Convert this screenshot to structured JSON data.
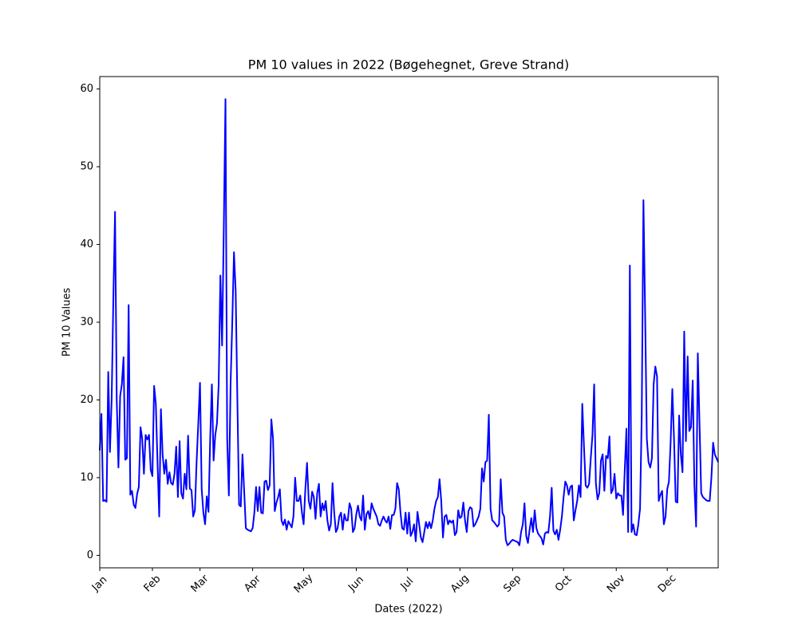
{
  "chart_data": {
    "type": "line",
    "title": "PM 10 values in 2022 (Bøgehegnet, Greve Strand)",
    "x_label": "Dates (2022)",
    "y_label": "PM 10 Values",
    "color": "#0000ff",
    "xlim": [
      0,
      364
    ],
    "ylim": [
      -1.6,
      61.6
    ],
    "yticks": [
      0,
      10,
      20,
      30,
      40,
      50,
      60
    ],
    "xticks": [
      {
        "value": 0,
        "label": "Jan"
      },
      {
        "value": 31,
        "label": "Feb"
      },
      {
        "value": 59,
        "label": "Mar"
      },
      {
        "value": 90,
        "label": "Apr"
      },
      {
        "value": 120,
        "label": "May"
      },
      {
        "value": 151,
        "label": "Jun"
      },
      {
        "value": 181,
        "label": "Jul"
      },
      {
        "value": 212,
        "label": "Aug"
      },
      {
        "value": 243,
        "label": "Sep"
      },
      {
        "value": 273,
        "label": "Oct"
      },
      {
        "value": 304,
        "label": "Nov"
      },
      {
        "value": 334,
        "label": "Dec"
      }
    ],
    "grid": false,
    "x": [
      0,
      1,
      2,
      3,
      4,
      5,
      6,
      7,
      8,
      9,
      10,
      11,
      12,
      13,
      14,
      15,
      16,
      17,
      18,
      19,
      20,
      21,
      22,
      23,
      24,
      25,
      26,
      27,
      28,
      29,
      30,
      31,
      32,
      33,
      34,
      35,
      36,
      37,
      38,
      39,
      40,
      41,
      42,
      43,
      44,
      45,
      46,
      47,
      48,
      49,
      50,
      51,
      52,
      53,
      54,
      55,
      56,
      57,
      58,
      59,
      60,
      61,
      62,
      63,
      64,
      65,
      66,
      67,
      68,
      69,
      70,
      71,
      72,
      73,
      74,
      75,
      76,
      77,
      78,
      79,
      80,
      81,
      82,
      83,
      84,
      85,
      86,
      87,
      88,
      89,
      90,
      91,
      92,
      93,
      94,
      95,
      96,
      97,
      98,
      99,
      100,
      101,
      102,
      103,
      104,
      105,
      106,
      107,
      108,
      109,
      110,
      111,
      112,
      113,
      114,
      115,
      116,
      117,
      118,
      119,
      120,
      121,
      122,
      123,
      124,
      125,
      126,
      127,
      128,
      129,
      130,
      131,
      132,
      133,
      134,
      135,
      136,
      137,
      138,
      139,
      140,
      141,
      142,
      143,
      144,
      145,
      146,
      147,
      148,
      149,
      150,
      151,
      152,
      153,
      154,
      155,
      156,
      157,
      158,
      159,
      160,
      161,
      162,
      163,
      164,
      165,
      166,
      167,
      168,
      169,
      170,
      171,
      172,
      173,
      174,
      175,
      176,
      177,
      178,
      179,
      180,
      181,
      182,
      183,
      184,
      185,
      186,
      187,
      188,
      189,
      190,
      191,
      192,
      193,
      194,
      195,
      196,
      197,
      198,
      199,
      200,
      201,
      202,
      203,
      204,
      205,
      206,
      207,
      208,
      209,
      210,
      211,
      212,
      213,
      214,
      215,
      216,
      217,
      218,
      219,
      220,
      221,
      222,
      223,
      224,
      225,
      226,
      227,
      228,
      229,
      230,
      231,
      232,
      233,
      234,
      235,
      236,
      237,
      238,
      239,
      240,
      241,
      242,
      243,
      244,
      245,
      246,
      247,
      248,
      249,
      250,
      251,
      252,
      253,
      254,
      255,
      256,
      257,
      258,
      259,
      260,
      261,
      262,
      263,
      264,
      265,
      266,
      267,
      268,
      269,
      270,
      271,
      272,
      273,
      274,
      275,
      276,
      277,
      278,
      279,
      280,
      281,
      282,
      283,
      284,
      285,
      286,
      287,
      288,
      289,
      290,
      291,
      292,
      293,
      294,
      295,
      296,
      297,
      298,
      299,
      300,
      301,
      302,
      303,
      304,
      305,
      306,
      307,
      308,
      309,
      310,
      311,
      312,
      313,
      314,
      315,
      316,
      317,
      318,
      319,
      320,
      321,
      322,
      323,
      324,
      325,
      326,
      327,
      328,
      329,
      330,
      331,
      332,
      333,
      334,
      335,
      336,
      337,
      338,
      339,
      340,
      341,
      342,
      343,
      344,
      345,
      346,
      347,
      348,
      349,
      350,
      351,
      352,
      353,
      354,
      355,
      356,
      357,
      358,
      359,
      360,
      361,
      362,
      363,
      364
    ],
    "values": [
      13.5,
      18.2,
      7,
      7.1,
      6.9,
      23.6,
      13.3,
      20,
      33,
      44.2,
      20,
      11.3,
      20.5,
      22,
      25.5,
      12.3,
      12.5,
      32.2,
      7.8,
      8.3,
      6.5,
      6.1,
      7.9,
      8.8,
      16.5,
      15,
      10.5,
      15.5,
      14.9,
      15.5,
      11,
      10.2,
      21.8,
      19.5,
      12,
      5,
      18.8,
      13,
      10.5,
      12.3,
      9.2,
      10.7,
      9.3,
      9.1,
      10.5,
      14,
      7.5,
      14.7,
      8,
      7.3,
      10.5,
      8.5,
      15.4,
      8.6,
      8.4,
      5,
      5.8,
      12,
      17,
      22.2,
      8.5,
      5.5,
      4,
      7.6,
      5.6,
      15,
      22,
      12.2,
      15.5,
      17,
      22,
      36,
      27,
      42,
      58.7,
      15,
      7.7,
      22,
      30,
      39,
      34,
      20,
      6.5,
      6.3,
      13,
      8.3,
      3.5,
      3.3,
      3.2,
      3.1,
      3.5,
      5.5,
      8.8,
      5.7,
      8.8,
      5.5,
      5.4,
      9.5,
      9.6,
      8.4,
      9,
      17.5,
      15,
      5.7,
      6.8,
      7.5,
      8.5,
      4.5,
      3.9,
      4.6,
      3.3,
      4.4,
      4,
      3.6,
      5,
      10,
      7,
      7,
      7.7,
      5.5,
      4,
      8.5,
      11.9,
      7,
      6,
      8.2,
      7.5,
      4.7,
      8,
      9.2,
      5,
      6.7,
      5.8,
      7,
      4.5,
      3.2,
      4,
      9.3,
      5.5,
      3,
      3.5,
      5,
      5.5,
      3.3,
      5.3,
      4.5,
      4.5,
      6.7,
      6,
      3,
      3.5,
      5.3,
      6.4,
      5,
      4.5,
      7.7,
      3.3,
      5.3,
      5.7,
      4.7,
      6.7,
      6,
      5.5,
      5,
      4,
      3.8,
      4.5,
      5,
      4.5,
      4.2,
      5,
      3.4,
      5.2,
      5.2,
      6,
      9.3,
      8.5,
      5.5,
      3.5,
      3.3,
      5.5,
      2.8,
      5.5,
      2.5,
      3,
      4,
      1.8,
      5.6,
      4,
      2.3,
      1.7,
      3,
      4.3,
      3.5,
      4.3,
      3.5,
      4.5,
      6,
      7,
      7.5,
      9.8,
      7,
      2.3,
      5,
      5.2,
      4,
      4.5,
      4.2,
      4.5,
      2.6,
      3,
      5.8,
      4.8,
      5,
      6.8,
      4.5,
      3,
      5.7,
      6.2,
      6,
      3.7,
      4,
      4.5,
      5,
      6,
      11.2,
      9.5,
      12,
      12.2,
      18.1,
      6,
      4.5,
      4.3,
      4,
      3.7,
      4,
      9.8,
      5.5,
      5,
      2,
      1.3,
      1.5,
      1.8,
      2,
      1.9,
      1.8,
      1.7,
      1.3,
      3,
      4,
      6.7,
      2.5,
      1.6,
      3.3,
      4.8,
      3,
      5.8,
      3.5,
      2.8,
      2.5,
      2.2,
      1.4,
      2.8,
      3,
      2.9,
      5,
      8.7,
      3.2,
      2.7,
      3.3,
      2,
      3.3,
      5,
      7.5,
      9.5,
      9,
      7.8,
      8.8,
      9,
      4.5,
      5.8,
      7,
      9,
      7.5,
      19.5,
      14,
      9,
      8.7,
      9.2,
      12.5,
      15.5,
      22,
      9.3,
      7.2,
      8,
      12.2,
      13,
      8.3,
      12.8,
      12.5,
      15.3,
      8,
      8.5,
      10.5,
      7.3,
      8,
      7.7,
      7.7,
      5.2,
      11,
      16.3,
      3,
      37.3,
      3,
      4,
      2.7,
      2.6,
      4,
      6,
      18,
      45.7,
      31,
      15,
      12,
      11.3,
      12.5,
      22,
      24.3,
      23,
      7,
      7.8,
      8.3,
      4,
      5,
      8.5,
      9.5,
      14.5,
      21.4,
      15,
      6.9,
      6.8,
      18,
      13,
      10.7,
      28.8,
      14.7,
      25.6,
      16,
      16.5,
      22.5,
      9,
      3.7,
      26,
      17,
      8,
      7.5,
      7.3,
      7.1,
      7,
      7,
      10,
      14.5,
      13,
      12.5,
      12
    ]
  }
}
